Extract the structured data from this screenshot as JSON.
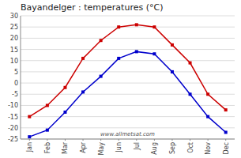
{
  "chart_data": {
    "type": "line",
    "title": "Bayandelger : temperatures (°C)",
    "categories": [
      "Jan",
      "Feb",
      "Mar",
      "Apr",
      "May",
      "Jun",
      "Jul",
      "Aug",
      "Sep",
      "Oct",
      "Nov",
      "Dec"
    ],
    "series": [
      {
        "color": "#cc0000",
        "marker": "square",
        "line_style": "solid",
        "values": [
          -15,
          -10,
          -2,
          11,
          19,
          25,
          26,
          25,
          17,
          9,
          -5,
          -12
        ]
      },
      {
        "color": "#0000cc",
        "marker": "square",
        "line_style": "solid",
        "values": [
          -24,
          -21,
          -13,
          -4,
          3,
          11,
          14,
          13,
          5,
          -5,
          -15,
          -22
        ]
      }
    ],
    "ylim": [
      -25,
      30
    ],
    "yticks": [
      -25,
      -20,
      -15,
      -10,
      -5,
      0,
      5,
      10,
      15,
      20,
      25,
      30
    ],
    "grid": true,
    "annotations": [
      "www.allmetsat.com"
    ]
  }
}
